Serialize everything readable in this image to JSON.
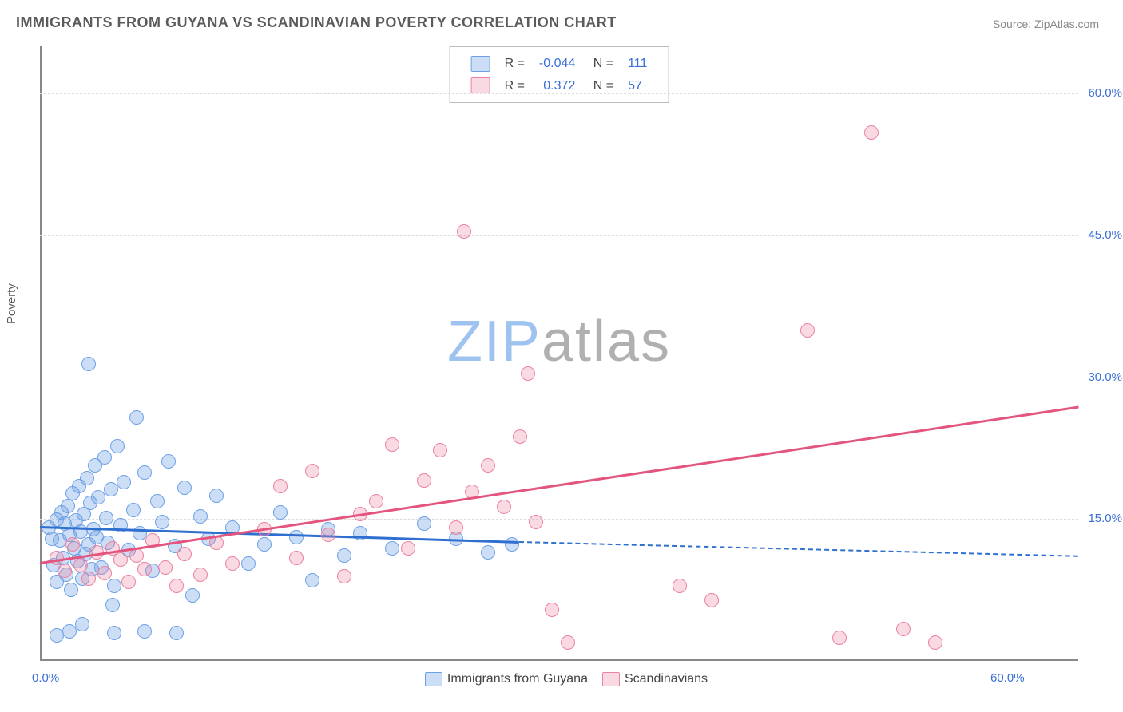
{
  "title": "IMMIGRANTS FROM GUYANA VS SCANDINAVIAN POVERTY CORRELATION CHART",
  "source": "Source: ZipAtlas.com",
  "ylabel": "Poverty",
  "watermark": {
    "a": "ZIP",
    "b": "atlas"
  },
  "chart": {
    "type": "scatter",
    "xlim": [
      0,
      65
    ],
    "ylim": [
      0,
      65
    ],
    "xticks": [
      {
        "v": 0,
        "l": "0.0%"
      },
      {
        "v": 60,
        "l": "60.0%"
      }
    ],
    "yticks": [
      {
        "v": 15,
        "l": "15.0%"
      },
      {
        "v": 30,
        "l": "30.0%"
      },
      {
        "v": 45,
        "l": "45.0%"
      },
      {
        "v": 60,
        "l": "60.0%"
      }
    ],
    "gridlines": [
      15,
      30,
      45,
      60
    ],
    "grid_color": "#dcdcdc",
    "axis_color": "#888888",
    "tick_color": "#3a6fd8",
    "background": "#ffffff",
    "marker_radius": 8,
    "series": [
      {
        "name": "Immigrants from Guyana",
        "fill": "rgba(110,160,230,0.35)",
        "stroke": "#6ea0e6",
        "reg": {
          "x1": 0,
          "y1": 14.3,
          "x2": 30,
          "y2": 12.7,
          "color": "#2f6fd0",
          "dash_to_x": 65,
          "dash_to_y": 11.2
        },
        "R": "-0.044",
        "N": "111",
        "points": [
          [
            0.5,
            14.2
          ],
          [
            0.7,
            13.0
          ],
          [
            0.8,
            10.2
          ],
          [
            1.0,
            15.0
          ],
          [
            1.0,
            8.4
          ],
          [
            1.2,
            12.8
          ],
          [
            1.3,
            15.8
          ],
          [
            1.4,
            11.0
          ],
          [
            1.5,
            14.6
          ],
          [
            1.6,
            9.2
          ],
          [
            1.7,
            16.5
          ],
          [
            1.8,
            13.4
          ],
          [
            1.9,
            7.6
          ],
          [
            2.0,
            17.8
          ],
          [
            2.1,
            12.0
          ],
          [
            2.2,
            14.9
          ],
          [
            2.3,
            10.6
          ],
          [
            2.4,
            18.6
          ],
          [
            2.5,
            13.8
          ],
          [
            2.6,
            8.8
          ],
          [
            2.7,
            15.6
          ],
          [
            2.8,
            11.4
          ],
          [
            2.9,
            19.4
          ],
          [
            3.0,
            12.4
          ],
          [
            3.1,
            16.8
          ],
          [
            3.2,
            9.8
          ],
          [
            3.3,
            14.0
          ],
          [
            3.4,
            20.8
          ],
          [
            3.5,
            13.2
          ],
          [
            3.6,
            17.4
          ],
          [
            3.8,
            10.0
          ],
          [
            4.0,
            21.6
          ],
          [
            4.1,
            15.2
          ],
          [
            4.2,
            12.6
          ],
          [
            4.4,
            18.2
          ],
          [
            4.6,
            8.0
          ],
          [
            4.8,
            22.8
          ],
          [
            5.0,
            14.4
          ],
          [
            5.2,
            19.0
          ],
          [
            5.5,
            11.8
          ],
          [
            3.0,
            31.5
          ],
          [
            4.5,
            6.0
          ],
          [
            5.8,
            16.0
          ],
          [
            6.0,
            25.8
          ],
          [
            6.2,
            13.6
          ],
          [
            6.5,
            20.0
          ],
          [
            7.0,
            9.6
          ],
          [
            7.3,
            17.0
          ],
          [
            7.6,
            14.8
          ],
          [
            8.0,
            21.2
          ],
          [
            8.4,
            12.2
          ],
          [
            9.0,
            18.4
          ],
          [
            9.5,
            7.0
          ],
          [
            1.0,
            2.8
          ],
          [
            1.8,
            3.2
          ],
          [
            2.6,
            4.0
          ],
          [
            4.6,
            3.0
          ],
          [
            6.5,
            3.2
          ],
          [
            8.5,
            3.0
          ],
          [
            10.0,
            15.4
          ],
          [
            10.5,
            13.0
          ],
          [
            11.0,
            17.6
          ],
          [
            12.0,
            14.2
          ],
          [
            13.0,
            10.4
          ],
          [
            14.0,
            12.4
          ],
          [
            15.0,
            15.8
          ],
          [
            16.0,
            13.2
          ],
          [
            17.0,
            8.6
          ],
          [
            18.0,
            14.0
          ],
          [
            19.0,
            11.2
          ],
          [
            20.0,
            13.6
          ],
          [
            22.0,
            12.0
          ],
          [
            24.0,
            14.6
          ],
          [
            26.0,
            13.0
          ],
          [
            28.0,
            11.6
          ],
          [
            29.5,
            12.4
          ]
        ]
      },
      {
        "name": "Scandinavians",
        "fill": "rgba(235,130,160,0.30)",
        "stroke": "#eb82a0",
        "reg": {
          "x1": 0,
          "y1": 10.5,
          "x2": 65,
          "y2": 27.0,
          "color": "#e3557e"
        },
        "R": "0.372",
        "N": "57",
        "points": [
          [
            1.0,
            11.0
          ],
          [
            1.5,
            9.6
          ],
          [
            2.0,
            12.4
          ],
          [
            2.5,
            10.2
          ],
          [
            3.0,
            8.8
          ],
          [
            3.5,
            11.6
          ],
          [
            4.0,
            9.4
          ],
          [
            4.5,
            12.0
          ],
          [
            5.0,
            10.8
          ],
          [
            5.5,
            8.4
          ],
          [
            6.0,
            11.2
          ],
          [
            6.5,
            9.8
          ],
          [
            7.0,
            12.8
          ],
          [
            7.8,
            10.0
          ],
          [
            8.5,
            8.0
          ],
          [
            9.0,
            11.4
          ],
          [
            10.0,
            9.2
          ],
          [
            11.0,
            12.6
          ],
          [
            12.0,
            10.4
          ],
          [
            14.0,
            14.0
          ],
          [
            15.0,
            18.6
          ],
          [
            16.0,
            11.0
          ],
          [
            17.0,
            20.2
          ],
          [
            18.0,
            13.4
          ],
          [
            19.0,
            9.0
          ],
          [
            20.0,
            15.6
          ],
          [
            21.0,
            17.0
          ],
          [
            22.0,
            23.0
          ],
          [
            23.0,
            12.0
          ],
          [
            24.0,
            19.2
          ],
          [
            25.0,
            22.4
          ],
          [
            26.0,
            14.2
          ],
          [
            26.5,
            45.5
          ],
          [
            27.0,
            18.0
          ],
          [
            28.0,
            20.8
          ],
          [
            29.0,
            16.4
          ],
          [
            30.0,
            23.8
          ],
          [
            30.5,
            30.5
          ],
          [
            31.0,
            14.8
          ],
          [
            32.0,
            5.5
          ],
          [
            33.0,
            2.0
          ],
          [
            40.0,
            8.0
          ],
          [
            42.0,
            6.5
          ],
          [
            48.0,
            35.0
          ],
          [
            50.0,
            2.5
          ],
          [
            52.0,
            56.0
          ],
          [
            54.0,
            3.5
          ],
          [
            56.0,
            2.0
          ]
        ]
      }
    ]
  },
  "bottom_legend": [
    {
      "label": "Immigrants from Guyana",
      "fill": "rgba(110,160,230,0.35)",
      "stroke": "#6ea0e6"
    },
    {
      "label": "Scandinavians",
      "fill": "rgba(235,130,160,0.30)",
      "stroke": "#eb82a0"
    }
  ]
}
